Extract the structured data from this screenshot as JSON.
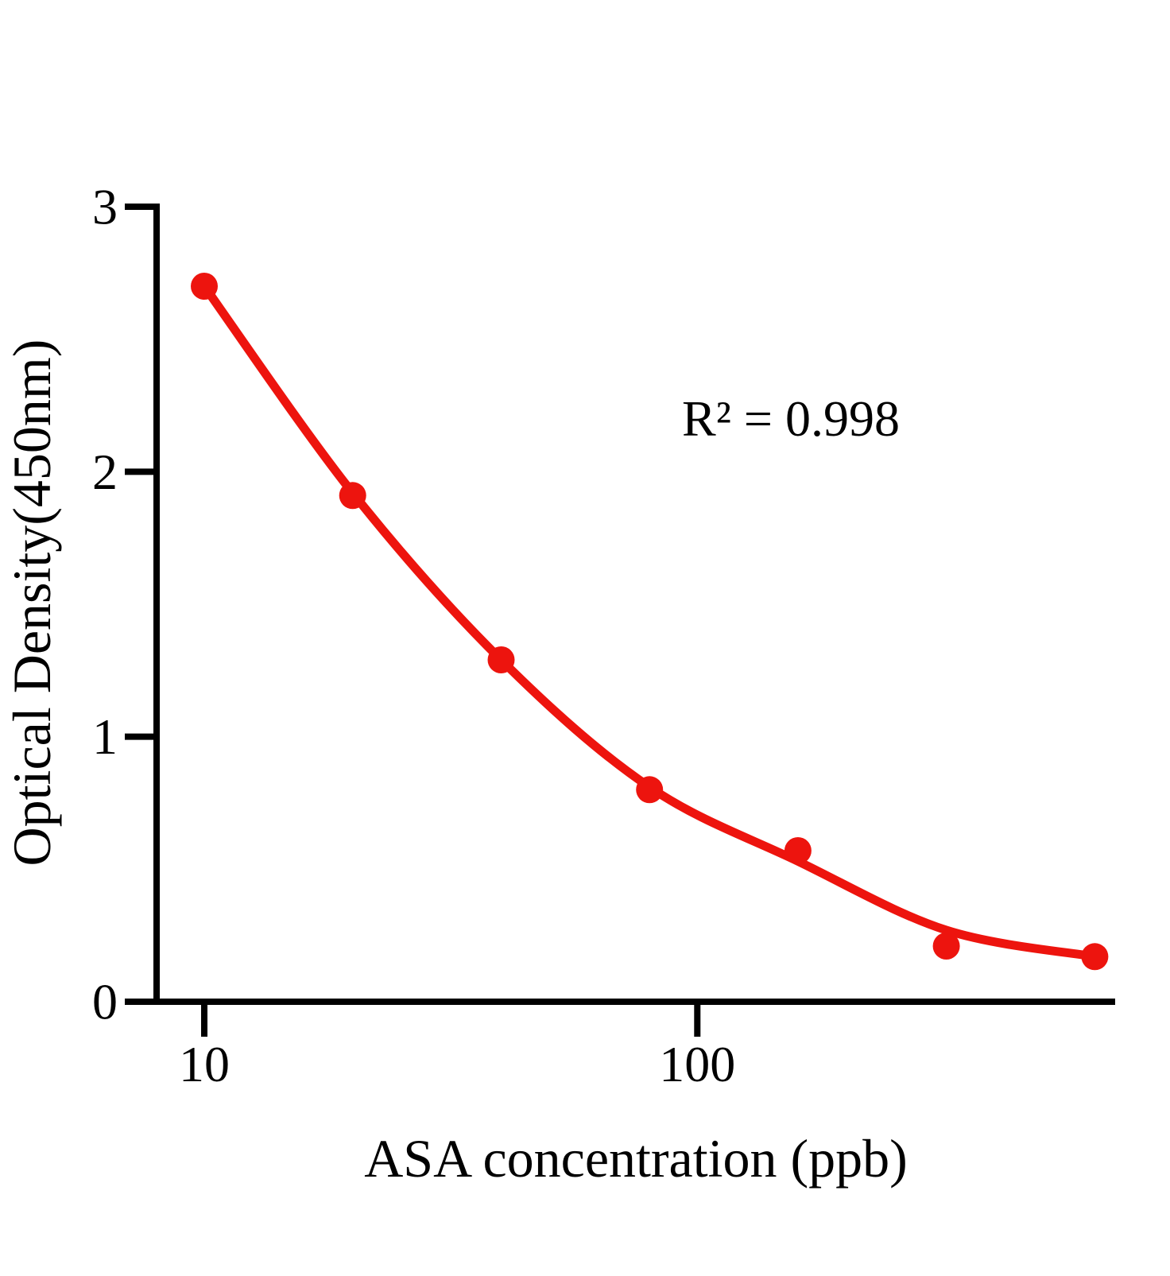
{
  "chart_data": {
    "type": "scatter",
    "title": "",
    "xlabel": "ASA concentration (ppb)",
    "ylabel": "Optical Density(450nm)",
    "annotation": "R² = 0.998",
    "x_scale": "log",
    "xlim": [
      7,
      700
    ],
    "ylim": [
      0,
      3
    ],
    "grid": false,
    "legend": "none",
    "x_ticks": [
      10,
      100
    ],
    "y_ticks": [
      0,
      1,
      2,
      3
    ],
    "series": [
      {
        "name": "standard-points",
        "x": [
          10,
          20,
          40,
          80,
          160,
          320,
          640
        ],
        "y": [
          2.7,
          1.91,
          1.29,
          0.8,
          0.57,
          0.21,
          0.17
        ]
      }
    ],
    "fit_curve": {
      "name": "fitted-curve",
      "x": [
        10,
        20,
        40,
        80,
        160,
        320,
        640
      ],
      "y": [
        2.7,
        1.92,
        1.29,
        0.81,
        0.53,
        0.27,
        0.17
      ]
    },
    "colors": {
      "curve": "#ed140e",
      "marker": "#ed140e",
      "axis": "#000000",
      "text": "#000000",
      "background": "#ffffff"
    }
  }
}
